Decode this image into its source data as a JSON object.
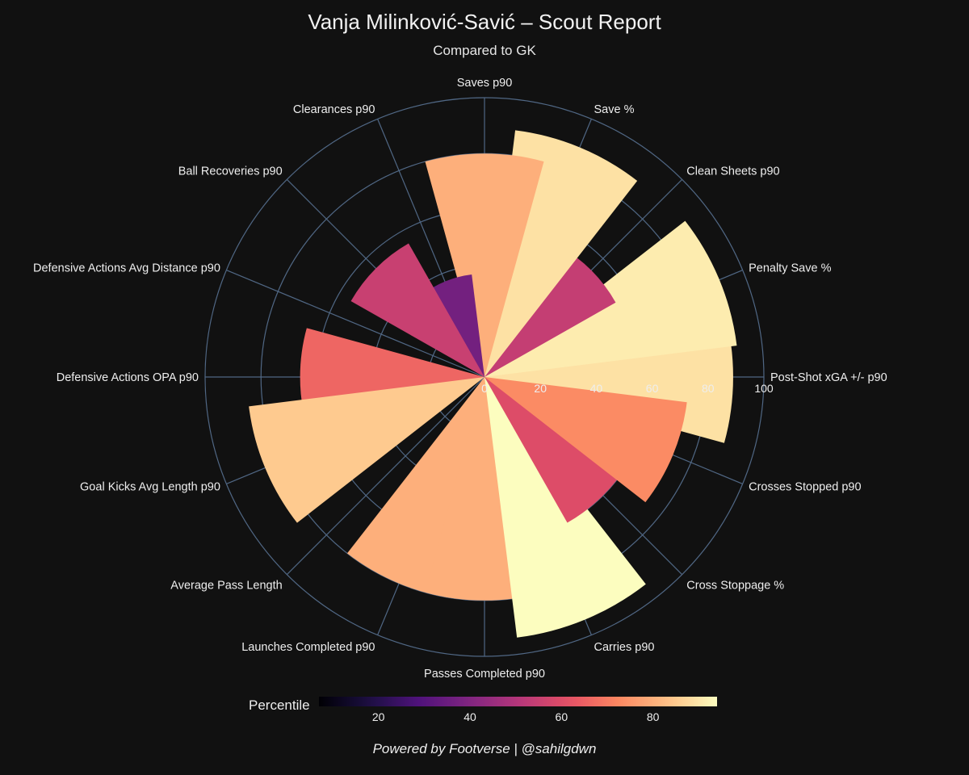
{
  "chart_data": {
    "type": "bar",
    "polar": true,
    "title": "Vanja Milinković-Savić – Scout Report",
    "subtitle": "Compared to GK",
    "radial_axis": {
      "range": [
        0,
        100
      ],
      "ticks": [
        0,
        20,
        40,
        60,
        80,
        100
      ]
    },
    "categories": [
      "Post-Shot xGA +/- p90",
      "Penalty Save %",
      "Clean Sheets p90",
      "Save %",
      "Saves p90",
      "Clearances p90",
      "Ball Recoveries p90",
      "Defensive Actions Avg Distance p90",
      "Defensive Actions OPA p90",
      "Goal Kicks Avg Length p90",
      "Average Pass Length",
      "Launches Completed p90",
      "Passes Completed p90",
      "Carries p90",
      "Cross Stoppage %",
      "Crosses Stopped p90"
    ],
    "values": [
      89,
      91,
      54,
      89,
      80,
      37,
      55,
      0,
      66,
      85,
      0,
      80,
      80,
      94,
      60,
      73
    ],
    "colorbar": {
      "title": "Percentile",
      "ticks": [
        20,
        40,
        60,
        80
      ],
      "range": [
        7,
        94
      ],
      "colorscale": "magma"
    }
  },
  "footer": "Powered by Footverse | @sahilgdwn"
}
